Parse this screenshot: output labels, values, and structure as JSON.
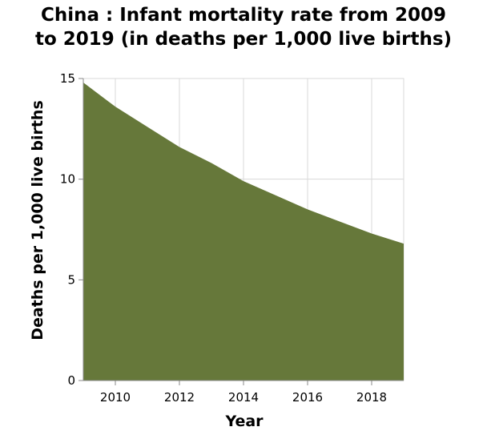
{
  "chart_data": {
    "type": "area",
    "title": "China : Infant mortality rate from 2009 to 2019 (in deaths per 1,000 live births)",
    "xlabel": "Year",
    "ylabel": "Deaths per 1,000 live births",
    "x": [
      2009,
      2010,
      2011,
      2012,
      2013,
      2014,
      2015,
      2016,
      2017,
      2018,
      2019
    ],
    "series": [
      {
        "values": [
          14.8,
          13.6,
          12.6,
          11.6,
          10.8,
          9.9,
          9.2,
          8.5,
          7.9,
          7.3,
          6.8
        ]
      }
    ],
    "xlim": [
      2009,
      2019
    ],
    "ylim": [
      0,
      15
    ],
    "xticks": [
      2010,
      2012,
      2014,
      2016,
      2018
    ],
    "yticks": [
      0,
      5,
      10,
      15
    ],
    "grid": true,
    "colors": {
      "fill": "#66783a",
      "grid": "#d9d9d9"
    }
  }
}
